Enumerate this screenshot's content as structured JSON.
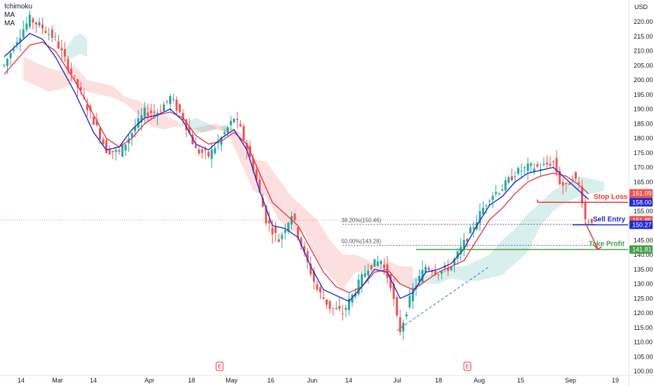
{
  "legend": {
    "line1": "Ichimoku",
    "line2": "MA",
    "line3": "MA"
  },
  "currency": "USD",
  "colors": {
    "up": "#26a69a",
    "down": "#ef5350",
    "ma_fast": "#1e2cd6",
    "ma_slow": "#e8384f",
    "cloud_bull": "#26a69a",
    "cloud_bear": "#ef5350",
    "stop": "#e53935",
    "entry": "#1e2cd6",
    "tp": "#43a047",
    "current": "#ef5350"
  },
  "chart_data": {
    "type": "candlestick",
    "ylim": [
      100,
      225
    ],
    "y_ticks": [
      100,
      105,
      110,
      115,
      120,
      125,
      130,
      135,
      140,
      145,
      150,
      155,
      160,
      165,
      170,
      175,
      180,
      185,
      190,
      195,
      200,
      205,
      210,
      215,
      220
    ],
    "x_ticks": [
      "14",
      "Mar",
      "14",
      "Apr",
      "18",
      "May",
      "16",
      "Jun",
      "14",
      "Jul",
      "18",
      "Aug",
      "15",
      "Sep",
      "19"
    ],
    "earnings_markers": [
      "E",
      "E"
    ],
    "price_path": [
      [
        0,
        205
      ],
      [
        4,
        214
      ],
      [
        8,
        221
      ],
      [
        12,
        218
      ],
      [
        16,
        214
      ],
      [
        22,
        200
      ],
      [
        28,
        186
      ],
      [
        32,
        176
      ],
      [
        36,
        175
      ],
      [
        40,
        182
      ],
      [
        44,
        189
      ],
      [
        48,
        189
      ],
      [
        52,
        194
      ],
      [
        56,
        187
      ],
      [
        60,
        176
      ],
      [
        64,
        174
      ],
      [
        68,
        180
      ],
      [
        72,
        187
      ],
      [
        74,
        183
      ],
      [
        78,
        170
      ],
      [
        82,
        152
      ],
      [
        86,
        145
      ],
      [
        90,
        154
      ],
      [
        94,
        140
      ],
      [
        98,
        128
      ],
      [
        102,
        122
      ],
      [
        106,
        120
      ],
      [
        110,
        128
      ],
      [
        114,
        136
      ],
      [
        118,
        138
      ],
      [
        121,
        130
      ],
      [
        123,
        118
      ],
      [
        124,
        114
      ],
      [
        128,
        128
      ],
      [
        132,
        136
      ],
      [
        136,
        134
      ],
      [
        140,
        136
      ],
      [
        144,
        144
      ],
      [
        148,
        152
      ],
      [
        152,
        160
      ],
      [
        156,
        163
      ],
      [
        160,
        168
      ],
      [
        164,
        170
      ],
      [
        168,
        170
      ],
      [
        172,
        172
      ],
      [
        174,
        165
      ],
      [
        176,
        163
      ],
      [
        178,
        167
      ],
      [
        180,
        164
      ],
      [
        181,
        159
      ],
      [
        182,
        152
      ],
      [
        184,
        152
      ]
    ],
    "ma_fast": [
      [
        0,
        208
      ],
      [
        4,
        212
      ],
      [
        8,
        216
      ],
      [
        12,
        214
      ],
      [
        16,
        208
      ],
      [
        22,
        196
      ],
      [
        28,
        182
      ],
      [
        32,
        176
      ],
      [
        36,
        177
      ],
      [
        40,
        183
      ],
      [
        44,
        187
      ],
      [
        48,
        188
      ],
      [
        52,
        190
      ],
      [
        56,
        186
      ],
      [
        60,
        178
      ],
      [
        64,
        176
      ],
      [
        68,
        180
      ],
      [
        72,
        183
      ],
      [
        76,
        176
      ],
      [
        80,
        162
      ],
      [
        84,
        150
      ],
      [
        88,
        149
      ],
      [
        92,
        146
      ],
      [
        96,
        136
      ],
      [
        100,
        128
      ],
      [
        104,
        126
      ],
      [
        108,
        124
      ],
      [
        112,
        129
      ],
      [
        116,
        135
      ],
      [
        120,
        134
      ],
      [
        124,
        125
      ],
      [
        128,
        127
      ],
      [
        132,
        134
      ],
      [
        136,
        135
      ],
      [
        140,
        137
      ],
      [
        144,
        142
      ],
      [
        148,
        150
      ],
      [
        152,
        157
      ],
      [
        156,
        160
      ],
      [
        160,
        165
      ],
      [
        164,
        168
      ],
      [
        168,
        169
      ],
      [
        172,
        170
      ],
      [
        176,
        166
      ],
      [
        180,
        162
      ],
      [
        183,
        159
      ]
    ],
    "ma_slow": [
      [
        0,
        202
      ],
      [
        4,
        207
      ],
      [
        8,
        212
      ],
      [
        12,
        213
      ],
      [
        16,
        210
      ],
      [
        22,
        200
      ],
      [
        28,
        188
      ],
      [
        32,
        180
      ],
      [
        36,
        177
      ],
      [
        40,
        180
      ],
      [
        44,
        185
      ],
      [
        48,
        188
      ],
      [
        52,
        189
      ],
      [
        56,
        187
      ],
      [
        60,
        181
      ],
      [
        64,
        178
      ],
      [
        68,
        179
      ],
      [
        72,
        182
      ],
      [
        76,
        178
      ],
      [
        80,
        168
      ],
      [
        84,
        158
      ],
      [
        88,
        154
      ],
      [
        92,
        150
      ],
      [
        96,
        142
      ],
      [
        100,
        134
      ],
      [
        104,
        129
      ],
      [
        108,
        127
      ],
      [
        112,
        129
      ],
      [
        116,
        134
      ],
      [
        120,
        135
      ],
      [
        124,
        130
      ],
      [
        128,
        128
      ],
      [
        132,
        131
      ],
      [
        136,
        134
      ],
      [
        140,
        136
      ],
      [
        144,
        138
      ],
      [
        148,
        145
      ],
      [
        152,
        152
      ],
      [
        156,
        156
      ],
      [
        160,
        161
      ],
      [
        164,
        165
      ],
      [
        168,
        167
      ],
      [
        172,
        168
      ],
      [
        176,
        167
      ],
      [
        180,
        164
      ],
      [
        183,
        161
      ]
    ],
    "cloud_bear": [
      [
        6,
        208,
        200
      ],
      [
        10,
        206,
        198
      ],
      [
        14,
        204,
        196
      ],
      [
        18,
        203,
        197
      ],
      [
        22,
        205,
        199
      ],
      [
        26,
        200,
        196
      ],
      [
        30,
        199,
        195
      ],
      [
        34,
        198,
        194
      ],
      [
        38,
        194,
        192
      ],
      [
        42,
        193,
        188
      ],
      [
        46,
        190,
        184
      ],
      [
        50,
        188,
        183
      ],
      [
        54,
        186,
        184
      ],
      [
        58,
        183,
        184
      ],
      [
        62,
        184,
        182
      ],
      [
        66,
        185,
        183
      ],
      [
        70,
        184,
        182
      ],
      [
        74,
        182,
        172
      ],
      [
        78,
        173,
        162
      ],
      [
        82,
        172,
        160
      ],
      [
        86,
        166,
        152
      ],
      [
        90,
        160,
        148
      ],
      [
        94,
        156,
        148
      ],
      [
        98,
        152,
        138
      ],
      [
        102,
        145,
        133
      ],
      [
        106,
        140,
        128
      ],
      [
        110,
        140,
        134
      ],
      [
        114,
        138,
        134
      ],
      [
        118,
        136,
        134
      ],
      [
        120,
        138,
        132
      ],
      [
        124,
        136,
        130
      ],
      [
        128,
        136,
        128
      ]
    ],
    "cloud_bull": [
      [
        18,
        209,
        206
      ],
      [
        20,
        212,
        207
      ],
      [
        22,
        215,
        208
      ],
      [
        24,
        216,
        209
      ],
      [
        26,
        214,
        208
      ],
      [
        58,
        183,
        186
      ],
      [
        60,
        182,
        187
      ],
      [
        62,
        182,
        186
      ],
      [
        66,
        183,
        184
      ],
      [
        70,
        185,
        182
      ],
      [
        128,
        132,
        128
      ],
      [
        132,
        133,
        130
      ],
      [
        136,
        134,
        130
      ],
      [
        140,
        136,
        132
      ],
      [
        144,
        136,
        131
      ],
      [
        148,
        138,
        131
      ],
      [
        152,
        140,
        132
      ],
      [
        156,
        145,
        133
      ],
      [
        160,
        149,
        137
      ],
      [
        164,
        154,
        141
      ],
      [
        168,
        158,
        150
      ],
      [
        172,
        162,
        155
      ],
      [
        176,
        165,
        158
      ],
      [
        180,
        167,
        160
      ],
      [
        184,
        166,
        161
      ],
      [
        188,
        165,
        162
      ]
    ],
    "trendline": [
      [
        123,
        114
      ],
      [
        152,
        136
      ]
    ],
    "fib_levels": [
      {
        "label": "38.20%(150.46)",
        "value": 150.46
      },
      {
        "label": "50.00%(143.28)",
        "value": 143.28
      }
    ],
    "fib_range": [
      106,
      186
    ],
    "current_price_line": 151.85,
    "levels": {
      "stop_loss": {
        "label": "Stop Loss",
        "value": 158.0
      },
      "sell_entry": {
        "label": "Sell Entry",
        "value": 150.27
      },
      "take_profit": {
        "label": "Take Profit",
        "value": 141.81
      }
    },
    "horizontal_support": {
      "value": 141.81,
      "start": 129
    },
    "projection_arrow": [
      [
        182,
        151
      ],
      [
        186,
        141.81
      ]
    ],
    "price_badges": [
      {
        "value": 161.09,
        "text": "161.09",
        "color": "#ef5350"
      },
      {
        "value": 158.33,
        "text": "158.33",
        "color": "#ef5350"
      },
      {
        "value": 158.0,
        "text": "158.00",
        "color": "#1e2cd6"
      },
      {
        "value": 151.85,
        "text": "151.85",
        "color": "#ef5350"
      },
      {
        "value": 150.27,
        "text": "150.27",
        "color": "#1e2cd6"
      },
      {
        "value": 141.81,
        "text": "141.81",
        "color": "#43a047"
      }
    ]
  }
}
